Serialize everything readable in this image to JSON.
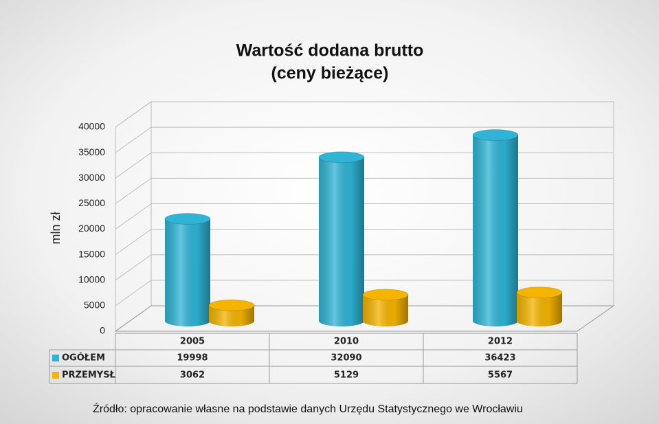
{
  "chart_data": {
    "type": "bar3d",
    "title": "Wartość dodana brutto",
    "subtitle": "(ceny bieżące)",
    "y_label": "mln zł",
    "source": "Źródło: opracowanie własne na podstawie danych Urzędu Statystycznego we Wrocławiu",
    "categories": [
      "2005",
      "2010",
      "2012"
    ],
    "series": [
      {
        "name": "OGÓŁEM",
        "color": "#2fb4d6",
        "values": [
          19998,
          32090,
          36423
        ]
      },
      {
        "name": "PRZEMYSŁ",
        "color": "#f5b400",
        "values": [
          3062,
          5129,
          5567
        ]
      }
    ],
    "ylim": [
      0,
      40000
    ],
    "yticks": [
      0,
      5000,
      10000,
      15000,
      20000,
      25000,
      30000,
      35000,
      40000
    ],
    "grid": true
  }
}
